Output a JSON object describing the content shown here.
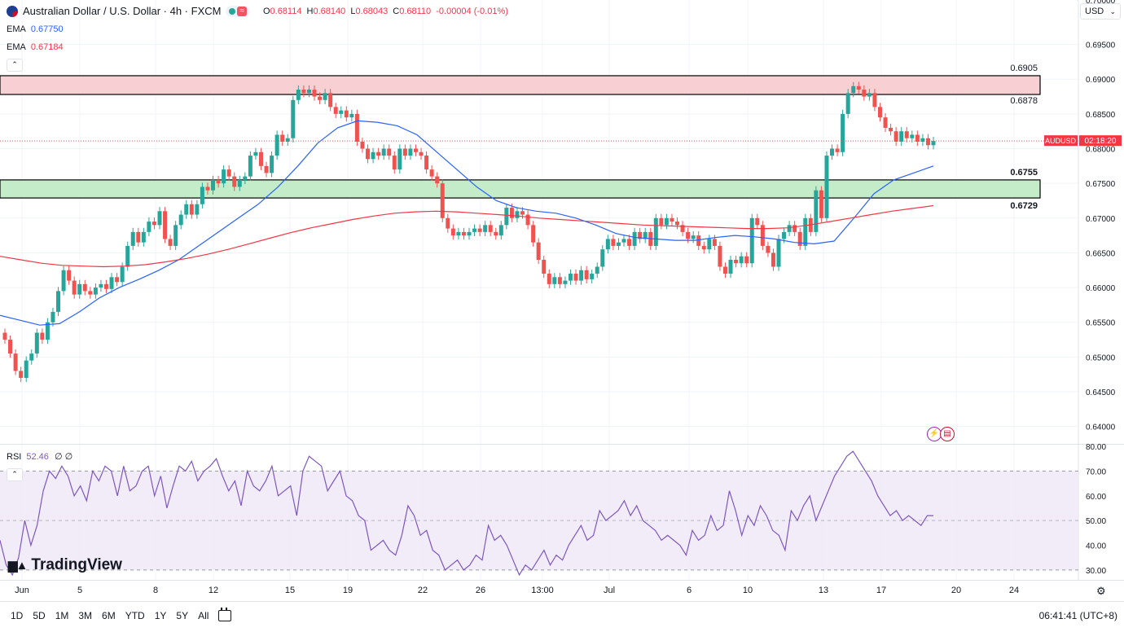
{
  "header": {
    "symbol_title": "Australian Dollar / U.S. Dollar · 4h · FXCM",
    "open_label": "O",
    "open": "0.68114",
    "high_label": "H",
    "high": "0.68140",
    "low_label": "L",
    "low": "0.68043",
    "close_label": "C",
    "close": "0.68110",
    "change": "-0.00004 (-0.01%)"
  },
  "indicators": {
    "ema1_label": "EMA",
    "ema1_value": "0.67750",
    "ema2_label": "EMA",
    "ema2_value": "0.67184",
    "rsi_label": "RSI",
    "rsi_value": "52.46",
    "rsi_extra": "∅ ∅"
  },
  "currency_select": "USD",
  "price_tag": {
    "symbol": "AUDUSD",
    "countdown": "02:18:20"
  },
  "zones": {
    "resistance_top": "0.6905",
    "resistance_bottom": "0.6878",
    "support_top": "0.6755",
    "support_bottom": "0.6729"
  },
  "branding": "TradingView",
  "bottom_bar": {
    "ranges": [
      "1D",
      "5D",
      "1M",
      "3M",
      "6M",
      "YTD",
      "1Y",
      "5Y",
      "All"
    ],
    "clock": "06:41:41 (UTC+8)"
  },
  "colors": {
    "up": "#26a69a",
    "down": "#ef5350",
    "ema1": "#2962ff",
    "ema2": "#f23645",
    "rsi": "#7e57c2",
    "resistance": "#f8d0d3",
    "support": "#c5ecc8"
  },
  "chart_data": {
    "type": "candlestick",
    "x_tick_labels": [
      "Jun",
      "5",
      "8",
      "12",
      "15",
      "19",
      "22",
      "26",
      "13:00",
      "Jul",
      "6",
      "10",
      "13",
      "17",
      "20",
      "24"
    ],
    "price_axis_labels": [
      "0.69500",
      "0.69000",
      "0.68500",
      "0.68000",
      "0.67500",
      "0.67000",
      "0.66500",
      "0.66000",
      "0.65500",
      "0.65000",
      "0.64500",
      "0.64000"
    ],
    "price_axis_partial_label": "0.70000",
    "ylim": [
      0.6375,
      0.7014
    ],
    "rsi_axis_labels": [
      "80.00",
      "70.00",
      "60.00",
      "50.00",
      "40.00",
      "30.00"
    ],
    "rsi_ylim": [
      26,
      81
    ],
    "rsi_bands": [
      30,
      70
    ],
    "rsi_mid": 50,
    "closes": [
      0.6525,
      0.6505,
      0.648,
      0.647,
      0.6495,
      0.6505,
      0.6535,
      0.6525,
      0.655,
      0.6565,
      0.6595,
      0.6625,
      0.661,
      0.659,
      0.6605,
      0.6595,
      0.659,
      0.66,
      0.6605,
      0.6598,
      0.6615,
      0.6608,
      0.663,
      0.666,
      0.668,
      0.6665,
      0.668,
      0.6695,
      0.669,
      0.671,
      0.667,
      0.666,
      0.669,
      0.6705,
      0.672,
      0.6705,
      0.672,
      0.6745,
      0.674,
      0.6755,
      0.675,
      0.677,
      0.676,
      0.6745,
      0.6755,
      0.676,
      0.679,
      0.6795,
      0.6775,
      0.6765,
      0.679,
      0.682,
      0.681,
      0.6815,
      0.687,
      0.6885,
      0.688,
      0.6885,
      0.6875,
      0.687,
      0.688,
      0.686,
      0.685,
      0.6855,
      0.6845,
      0.685,
      0.681,
      0.68,
      0.6785,
      0.6795,
      0.679,
      0.68,
      0.679,
      0.677,
      0.68,
      0.679,
      0.68,
      0.6795,
      0.679,
      0.677,
      0.676,
      0.675,
      0.67,
      0.6685,
      0.6675,
      0.668,
      0.6675,
      0.668,
      0.6685,
      0.668,
      0.669,
      0.668,
      0.6675,
      0.669,
      0.6715,
      0.67,
      0.671,
      0.6705,
      0.669,
      0.6665,
      0.664,
      0.662,
      0.6605,
      0.6615,
      0.6605,
      0.661,
      0.662,
      0.661,
      0.6625,
      0.6612,
      0.662,
      0.663,
      0.6655,
      0.667,
      0.666,
      0.6665,
      0.667,
      0.666,
      0.668,
      0.667,
      0.668,
      0.666,
      0.67,
      0.669,
      0.67,
      0.6695,
      0.669,
      0.668,
      0.667,
      0.6675,
      0.666,
      0.6655,
      0.667,
      0.666,
      0.663,
      0.662,
      0.664,
      0.6635,
      0.6645,
      0.6635,
      0.67,
      0.669,
      0.666,
      0.665,
      0.663,
      0.667,
      0.668,
      0.669,
      0.668,
      0.666,
      0.67,
      0.668,
      0.674,
      0.67,
      0.679,
      0.68,
      0.6795,
      0.685,
      0.688,
      0.689,
      0.6885,
      0.6875,
      0.688,
      0.686,
      0.6845,
      0.683,
      0.6825,
      0.681,
      0.6825,
      0.6815,
      0.682,
      0.681,
      0.6815,
      0.6805,
      0.6811
    ],
    "ema_fast": [
      0.656,
      0.6553,
      0.6546,
      0.6548,
      0.6565,
      0.6585,
      0.66,
      0.6612,
      0.6625,
      0.664,
      0.666,
      0.668,
      0.67,
      0.672,
      0.6745,
      0.6775,
      0.6808,
      0.683,
      0.684,
      0.6838,
      0.6833,
      0.682,
      0.6795,
      0.677,
      0.6745,
      0.6725,
      0.6715,
      0.671,
      0.6707,
      0.67,
      0.669,
      0.6678,
      0.6672,
      0.667,
      0.6668,
      0.6668,
      0.6672,
      0.6675,
      0.6673,
      0.667,
      0.6665,
      0.6663,
      0.6667,
      0.67,
      0.6735,
      0.6755,
      0.6765,
      0.6775
    ],
    "ema_slow": [
      0.6645,
      0.664,
      0.6635,
      0.6632,
      0.6631,
      0.663,
      0.6631,
      0.6633,
      0.6637,
      0.6642,
      0.6648,
      0.6655,
      0.6663,
      0.6671,
      0.6679,
      0.6686,
      0.6692,
      0.6698,
      0.6703,
      0.6707,
      0.6709,
      0.671,
      0.6709,
      0.6707,
      0.6705,
      0.6703,
      0.67,
      0.6698,
      0.6696,
      0.6694,
      0.6692,
      0.669,
      0.6689,
      0.6688,
      0.6687,
      0.6686,
      0.6685,
      0.6685,
      0.6686,
      0.669,
      0.6695,
      0.67,
      0.6705,
      0.671,
      0.6714,
      0.6718
    ],
    "rsi": [
      42,
      32,
      28,
      35,
      50,
      40,
      48,
      62,
      70,
      67,
      72,
      68,
      60,
      64,
      58,
      70,
      66,
      72,
      70,
      60,
      72,
      62,
      64,
      70,
      72,
      60,
      68,
      55,
      64,
      72,
      70,
      74,
      66,
      70,
      72,
      75,
      68,
      62,
      66,
      56,
      70,
      64,
      62,
      66,
      72,
      60,
      62,
      64,
      52,
      70,
      76,
      74,
      72,
      62,
      66,
      70,
      60,
      58,
      52,
      50,
      38,
      40,
      42,
      38,
      36,
      44,
      56,
      52,
      44,
      46,
      38,
      36,
      30,
      32,
      34,
      30,
      32,
      36,
      34,
      48,
      42,
      44,
      40,
      34,
      28,
      32,
      30,
      34,
      38,
      32,
      36,
      34,
      40,
      44,
      48,
      42,
      44,
      54,
      50,
      52,
      54,
      58,
      52,
      56,
      50,
      48,
      46,
      42,
      44,
      42,
      40,
      36,
      46,
      42,
      44,
      52,
      46,
      48,
      62,
      54,
      44,
      52,
      48,
      56,
      52,
      46,
      44,
      38,
      54,
      50,
      56,
      60,
      50,
      56,
      62,
      68,
      72,
      76,
      78,
      74,
      70,
      66,
      60,
      56,
      52,
      54,
      50,
      52,
      50,
      48,
      52,
      52
    ]
  }
}
